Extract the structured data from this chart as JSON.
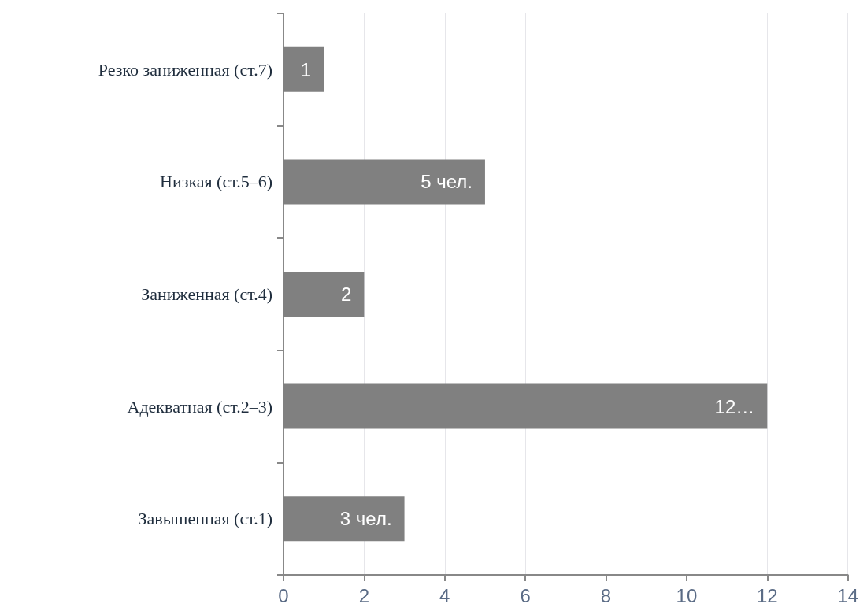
{
  "chart_data": {
    "type": "bar",
    "orientation": "horizontal",
    "categories": [
      "Резко заниженная (ст.7)",
      "Низкая (ст.5–6)",
      "Заниженная (ст.4)",
      "Адекватная (ст.2–3)",
      "Завышенная (ст.1)"
    ],
    "values": [
      1,
      5,
      2,
      12,
      3
    ],
    "value_labels": [
      "1",
      "5 чел.",
      "2",
      "12…",
      "3 чел."
    ],
    "color": "#808080",
    "xlim": [
      0,
      14
    ],
    "xticks": [
      0,
      2,
      4,
      6,
      8,
      10,
      12,
      14
    ],
    "grid": "x"
  }
}
